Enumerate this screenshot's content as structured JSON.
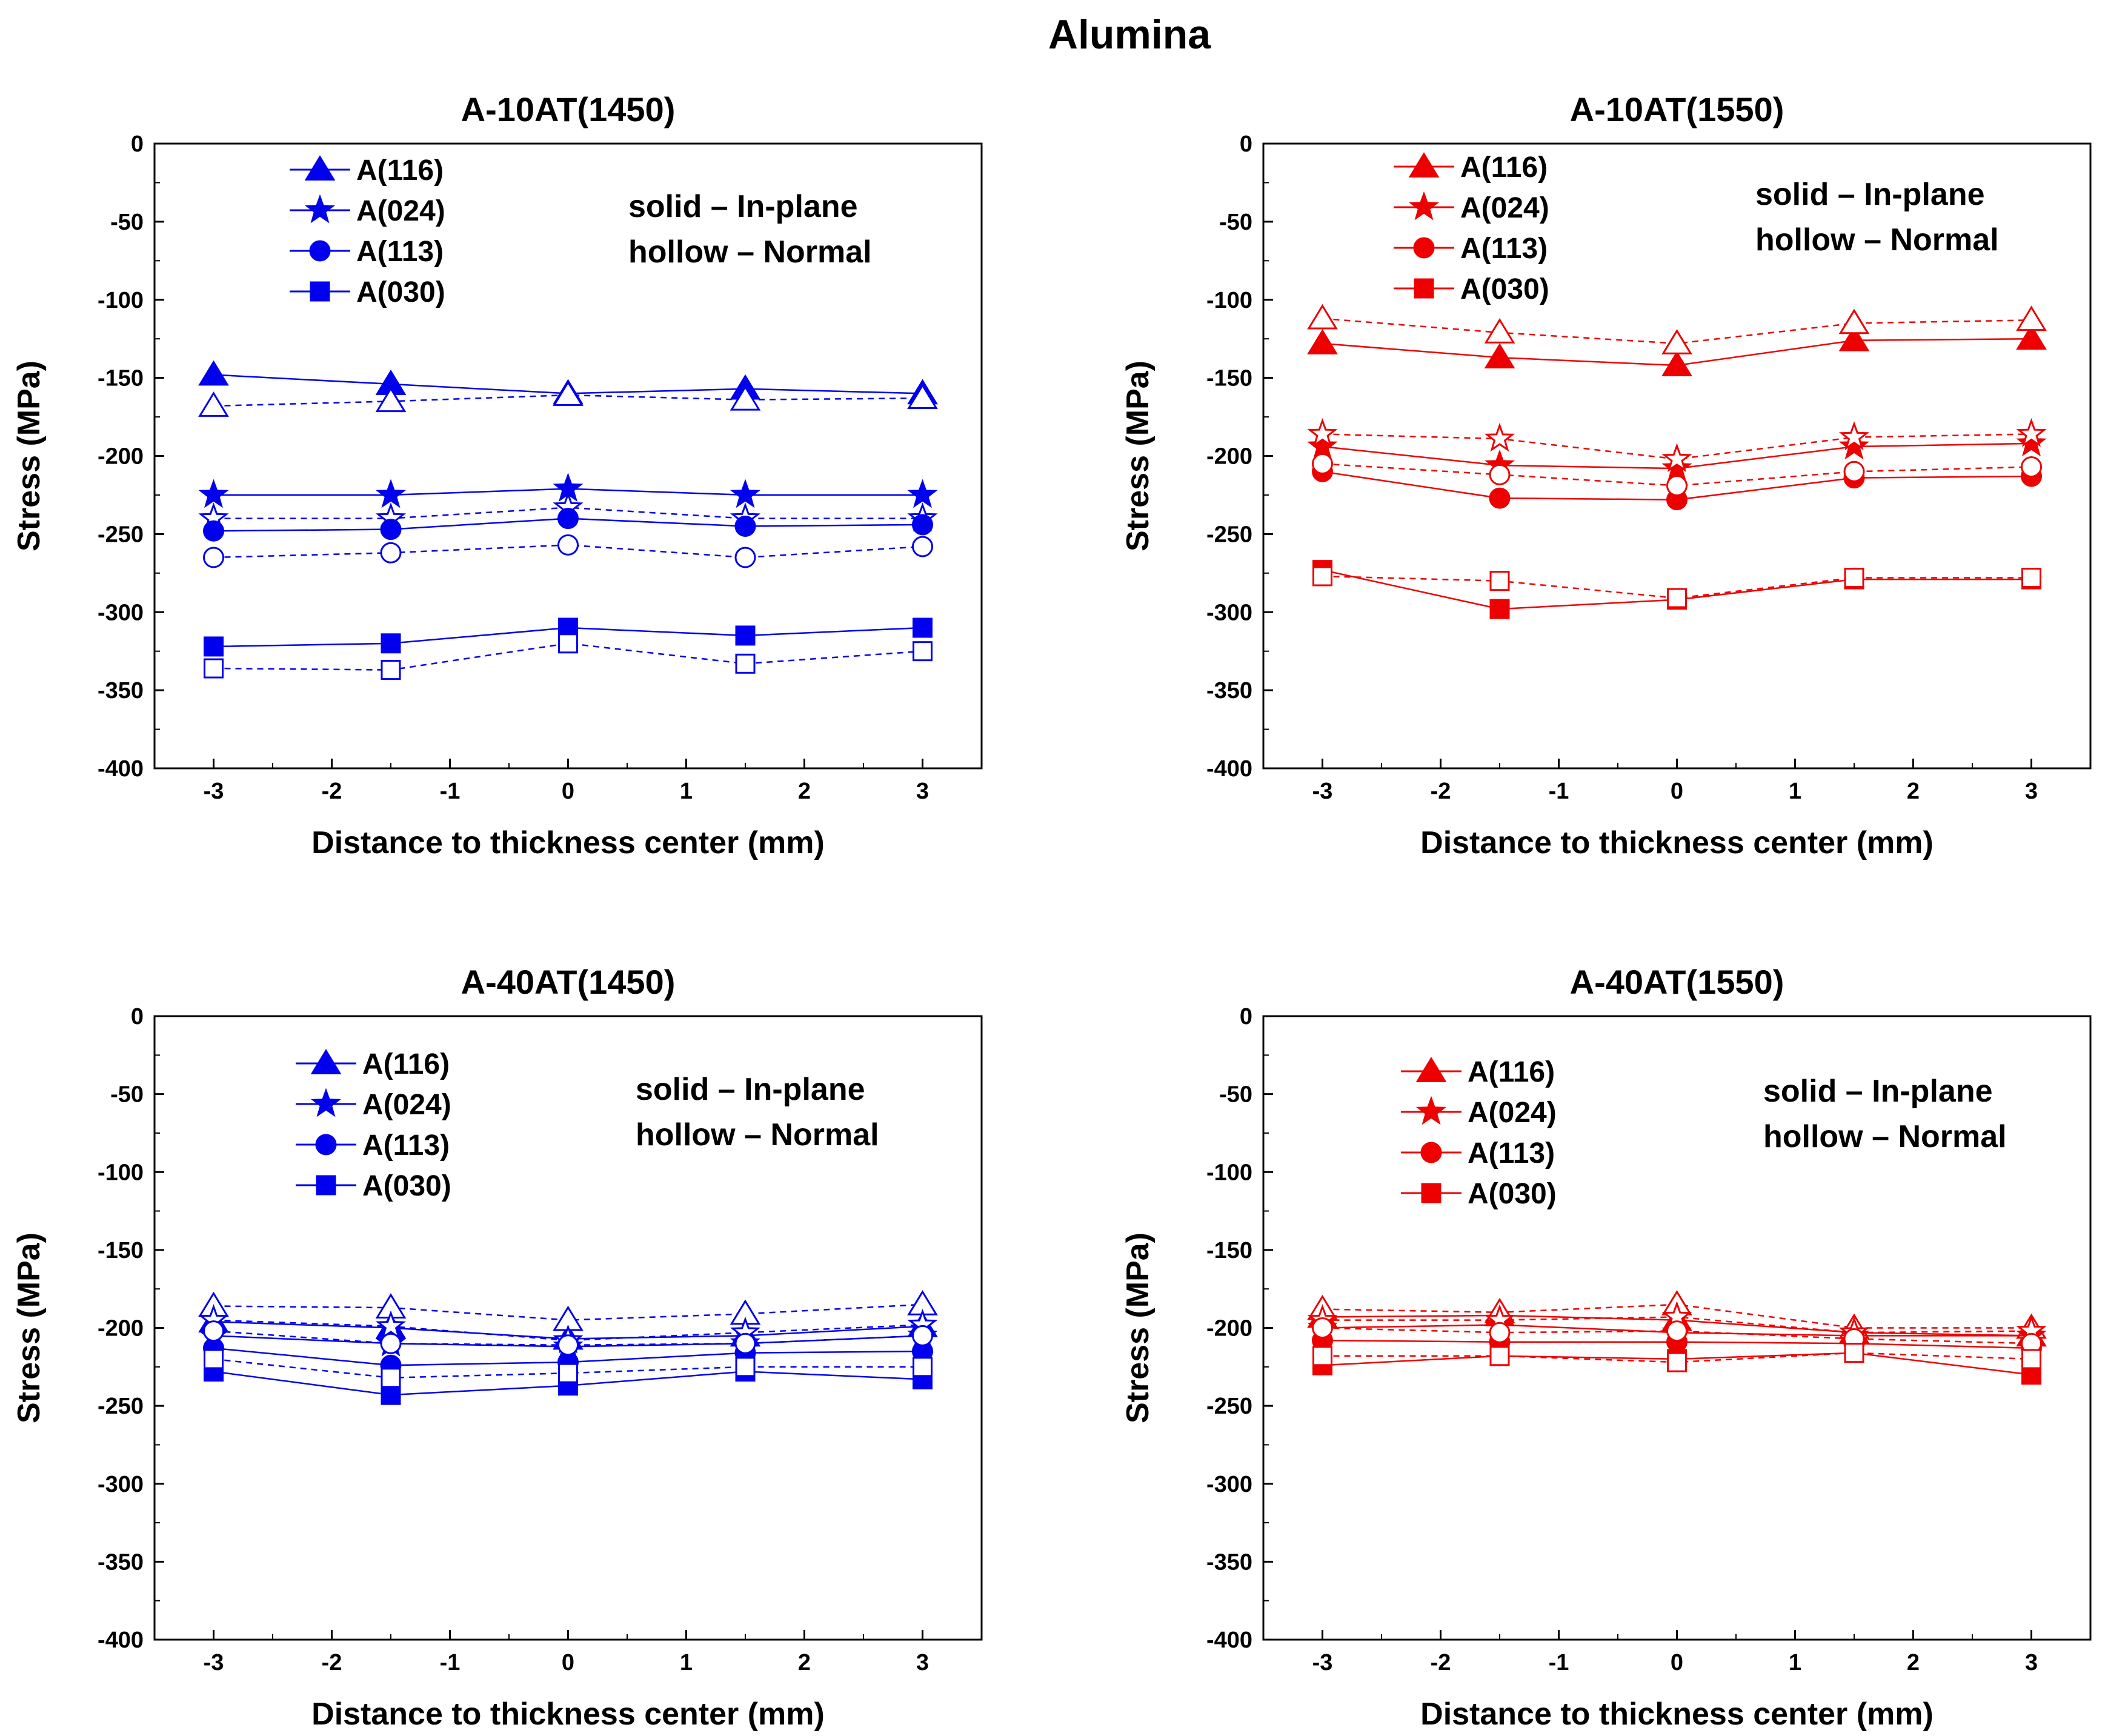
{
  "figure": {
    "title": "Alumina"
  },
  "notes": {
    "solid": "solid –  In-plane",
    "hollow": "hollow –  Normal"
  },
  "colors": {
    "blue": "#0000ee",
    "red": "#ee0000"
  },
  "chart_data": [
    {
      "type": "line",
      "title": "A-10AT(1450)",
      "xlabel": "Distance to thickness center (mm)",
      "ylabel": "Stress (MPa)",
      "xlim": [
        -3.5,
        3.5
      ],
      "ylim": [
        -400,
        0
      ],
      "xticks": [
        -3,
        -2,
        -1,
        0,
        1,
        2,
        3
      ],
      "yticks": [
        0,
        -50,
        -100,
        -150,
        -200,
        -250,
        -300,
        -350,
        -400
      ],
      "x": [
        -3,
        -1.5,
        0,
        1.5,
        3
      ],
      "color": "#0000ee",
      "legend": [
        "A(116)",
        "A(024)",
        "A(113)",
        "A(030)"
      ],
      "series": [
        {
          "name": "A(116)",
          "marker": "triangle",
          "style": "solid",
          "values": [
            -148,
            -154,
            -160,
            -157,
            -160
          ]
        },
        {
          "name": "A(116)",
          "marker": "triangle",
          "style": "hollow",
          "values": [
            -168,
            -165,
            -161,
            -164,
            -163
          ]
        },
        {
          "name": "A(024)",
          "marker": "star",
          "style": "solid",
          "values": [
            -225,
            -225,
            -221,
            -225,
            -225
          ]
        },
        {
          "name": "A(024)",
          "marker": "star",
          "style": "hollow",
          "values": [
            -240,
            -240,
            -233,
            -240,
            -240
          ]
        },
        {
          "name": "A(113)",
          "marker": "circle",
          "style": "solid",
          "values": [
            -248,
            -247,
            -240,
            -245,
            -244
          ]
        },
        {
          "name": "A(113)",
          "marker": "circle",
          "style": "hollow",
          "values": [
            -265,
            -262,
            -257,
            -265,
            -258
          ]
        },
        {
          "name": "A(030)",
          "marker": "square",
          "style": "solid",
          "values": [
            -322,
            -320,
            -310,
            -315,
            -310
          ]
        },
        {
          "name": "A(030)",
          "marker": "square",
          "style": "hollow",
          "values": [
            -336,
            -337,
            -320,
            -333,
            -325
          ]
        }
      ]
    },
    {
      "type": "line",
      "title": "A-10AT(1550)",
      "xlabel": "Distance to thickness center (mm)",
      "ylabel": "Stress (MPa)",
      "xlim": [
        -3.5,
        3.5
      ],
      "ylim": [
        -400,
        0
      ],
      "xticks": [
        -3,
        -2,
        -1,
        0,
        1,
        2,
        3
      ],
      "yticks": [
        0,
        -50,
        -100,
        -150,
        -200,
        -250,
        -300,
        -350,
        -400
      ],
      "x": [
        -3,
        -1.5,
        0,
        1.5,
        3
      ],
      "color": "#ee0000",
      "legend": [
        "A(116)",
        "A(024)",
        "A(113)",
        "A(030)"
      ],
      "series": [
        {
          "name": "A(116)",
          "marker": "triangle",
          "style": "solid",
          "values": [
            -128,
            -137,
            -142,
            -126,
            -125
          ]
        },
        {
          "name": "A(116)",
          "marker": "triangle",
          "style": "hollow",
          "values": [
            -112,
            -121,
            -128,
            -115,
            -113
          ]
        },
        {
          "name": "A(024)",
          "marker": "star",
          "style": "solid",
          "values": [
            -194,
            -206,
            -208,
            -194,
            -192
          ]
        },
        {
          "name": "A(024)",
          "marker": "star",
          "style": "hollow",
          "values": [
            -186,
            -189,
            -202,
            -188,
            -186
          ]
        },
        {
          "name": "A(113)",
          "marker": "circle",
          "style": "solid",
          "values": [
            -210,
            -227,
            -228,
            -214,
            -213
          ]
        },
        {
          "name": "A(113)",
          "marker": "circle",
          "style": "hollow",
          "values": [
            -205,
            -212,
            -219,
            -210,
            -207
          ]
        },
        {
          "name": "A(030)",
          "marker": "square",
          "style": "solid",
          "values": [
            -273,
            -298,
            -292,
            -279,
            -279
          ]
        },
        {
          "name": "A(030)",
          "marker": "square",
          "style": "hollow",
          "values": [
            -277,
            -280,
            -291,
            -278,
            -278
          ]
        }
      ]
    },
    {
      "type": "line",
      "title": "A-40AT(1450)",
      "xlabel": "Distance to thickness center (mm)",
      "ylabel": "Stress (MPa)",
      "xlim": [
        -3.5,
        3.5
      ],
      "ylim": [
        -400,
        0
      ],
      "xticks": [
        -3,
        -2,
        -1,
        0,
        1,
        2,
        3
      ],
      "yticks": [
        0,
        -50,
        -100,
        -150,
        -200,
        -250,
        -300,
        -350,
        -400
      ],
      "x": [
        -3,
        -1.5,
        0,
        1.5,
        3
      ],
      "color": "#0000ee",
      "legend": [
        "A(116)",
        "A(024)",
        "A(113)",
        "A(030)"
      ],
      "series": [
        {
          "name": "A(116)",
          "marker": "triangle",
          "style": "solid",
          "values": [
            -196,
            -200,
            -207,
            -205,
            -199
          ]
        },
        {
          "name": "A(116)",
          "marker": "triangle",
          "style": "hollow",
          "values": [
            -186,
            -187,
            -195,
            -191,
            -185
          ]
        },
        {
          "name": "A(024)",
          "marker": "star",
          "style": "solid",
          "values": [
            -205,
            -210,
            -212,
            -210,
            -205
          ]
        },
        {
          "name": "A(024)",
          "marker": "star",
          "style": "hollow",
          "values": [
            -195,
            -199,
            -208,
            -203,
            -198
          ]
        },
        {
          "name": "A(113)",
          "marker": "circle",
          "style": "solid",
          "values": [
            -213,
            -224,
            -222,
            -216,
            -215
          ]
        },
        {
          "name": "A(113)",
          "marker": "circle",
          "style": "hollow",
          "values": [
            -202,
            -210,
            -211,
            -210,
            -205
          ]
        },
        {
          "name": "A(030)",
          "marker": "square",
          "style": "solid",
          "values": [
            -228,
            -243,
            -237,
            -228,
            -233
          ]
        },
        {
          "name": "A(030)",
          "marker": "square",
          "style": "hollow",
          "values": [
            -220,
            -232,
            -229,
            -225,
            -225
          ]
        }
      ]
    },
    {
      "type": "line",
      "title": "A-40AT(1550)",
      "xlabel": "Distance to thickness center (mm)",
      "ylabel": "Stress (MPa)",
      "xlim": [
        -3.5,
        3.5
      ],
      "ylim": [
        -400,
        0
      ],
      "xticks": [
        -3,
        -2,
        -1,
        0,
        1,
        2,
        3
      ],
      "yticks": [
        0,
        -50,
        -100,
        -150,
        -200,
        -250,
        -300,
        -350,
        -400
      ],
      "x": [
        -3,
        -1.5,
        0,
        1.5,
        3
      ],
      "color": "#ee0000",
      "legend": [
        "A(116)",
        "A(024)",
        "A(113)",
        "A(030)"
      ],
      "series": [
        {
          "name": "A(116)",
          "marker": "triangle",
          "style": "solid",
          "values": [
            -193,
            -192,
            -195,
            -203,
            -205
          ]
        },
        {
          "name": "A(116)",
          "marker": "triangle",
          "style": "hollow",
          "values": [
            -188,
            -190,
            -185,
            -200,
            -200
          ]
        },
        {
          "name": "A(024)",
          "marker": "star",
          "style": "solid",
          "values": [
            -200,
            -198,
            -203,
            -205,
            -205
          ]
        },
        {
          "name": "A(024)",
          "marker": "star",
          "style": "hollow",
          "values": [
            -195,
            -195,
            -193,
            -203,
            -202
          ]
        },
        {
          "name": "A(113)",
          "marker": "circle",
          "style": "solid",
          "values": [
            -208,
            -209,
            -209,
            -210,
            -213
          ]
        },
        {
          "name": "A(113)",
          "marker": "circle",
          "style": "hollow",
          "values": [
            -200,
            -203,
            -202,
            -207,
            -210
          ]
        },
        {
          "name": "A(030)",
          "marker": "square",
          "style": "solid",
          "values": [
            -224,
            -218,
            -220,
            -216,
            -230
          ]
        },
        {
          "name": "A(030)",
          "marker": "square",
          "style": "hollow",
          "values": [
            -218,
            -218,
            -222,
            -216,
            -220
          ]
        }
      ]
    }
  ]
}
